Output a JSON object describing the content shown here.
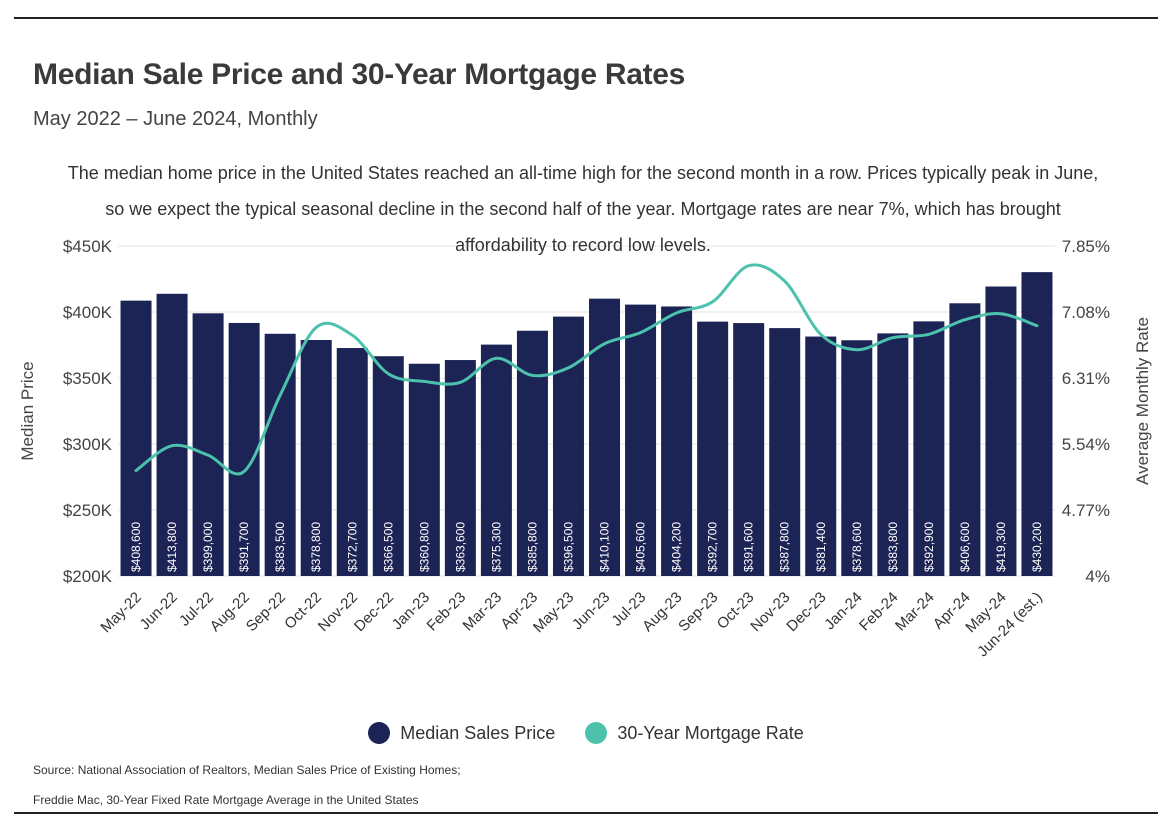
{
  "title": "Median Sale Price and 30-Year Mortgage Rates",
  "subtitle": "May 2022 – June 2024, Monthly",
  "annotation": "The median home price in the United States reached an all-time high for the second month in a row. Prices typically peak in June, so we expect the typical seasonal decline in the second half of the year. Mortgage rates are near 7%, which has brought affordability to record low levels.",
  "source_line1": "Source: National Association of Realtors, Median Sales Price of Existing Homes;",
  "source_line2": "Freddie Mac, 30-Year Fixed Rate Mortgage Average in the United States",
  "colors": {
    "bar": "#1c2456",
    "line": "#4cc2ad",
    "grid": "#e3e3e3"
  },
  "legend": {
    "bars": "Median Sales Price",
    "line": "30-Year Mortgage Rate"
  },
  "chart_data": {
    "type": "bar",
    "categories": [
      "May-22",
      "Jun-22",
      "Jul-22",
      "Aug-22",
      "Sep-22",
      "Oct-22",
      "Nov-22",
      "Dec-22",
      "Jan-23",
      "Feb-23",
      "Mar-23",
      "Apr-23",
      "May-23",
      "Jun-23",
      "Jul-23",
      "Aug-23",
      "Sep-23",
      "Oct-23",
      "Nov-23",
      "Dec-23",
      "Jan-24",
      "Feb-24",
      "Mar-24",
      "Apr-24",
      "May-24",
      "Jun-24 (est.)"
    ],
    "series": [
      {
        "name": "Median Sales Price",
        "type": "bar",
        "axis": "left",
        "values": [
          408600,
          413800,
          399000,
          391700,
          383500,
          378800,
          372700,
          366500,
          360800,
          363600,
          375300,
          385800,
          396500,
          410100,
          405600,
          404200,
          392700,
          391600,
          387800,
          381400,
          378600,
          383800,
          392900,
          406600,
          419300,
          430200
        ],
        "labels": [
          "$408,600",
          "$413,800",
          "$399,000",
          "$391,700",
          "$383,500",
          "$378,800",
          "$372,700",
          "$366,500",
          "$360,800",
          "$363,600",
          "$375,300",
          "$385,800",
          "$396,500",
          "$410,100",
          "$405,600",
          "$404,200",
          "$392,700",
          "$391,600",
          "$387,800",
          "$381,400",
          "$378,600",
          "$383,800",
          "$392,900",
          "$406,600",
          "$419,300",
          "$430,200"
        ]
      },
      {
        "name": "30-Year Mortgage Rate",
        "type": "line",
        "axis": "right",
        "values": [
          5.23,
          5.52,
          5.41,
          5.22,
          6.11,
          6.9,
          6.81,
          6.36,
          6.27,
          6.26,
          6.54,
          6.34,
          6.43,
          6.71,
          6.84,
          7.07,
          7.2,
          7.62,
          7.44,
          6.82,
          6.64,
          6.78,
          6.82,
          6.99,
          7.06,
          6.92
        ]
      }
    ],
    "ylabel_left": "Median Price",
    "ylabel_right": "Average Monthly Rate",
    "ylim_left": [
      200000,
      450000
    ],
    "ylim_right": [
      4,
      7.85
    ],
    "yticks_left": [
      "$200K",
      "$250K",
      "$300K",
      "$350K",
      "$400K",
      "$450K"
    ],
    "yticks_right": [
      "4%",
      "4.77%",
      "5.54%",
      "6.31%",
      "7.08%",
      "7.85%"
    ],
    "grid": true,
    "legend_position": "bottom"
  }
}
